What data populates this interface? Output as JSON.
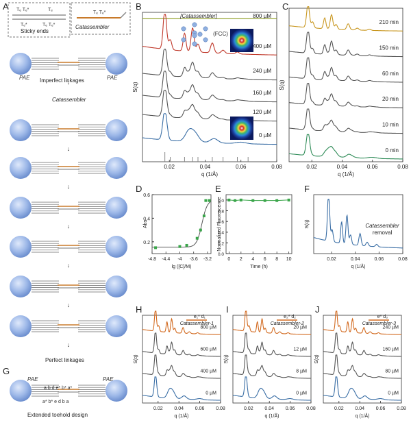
{
  "panels": [
    {
      "id": "A",
      "label": "A"
    },
    {
      "id": "B",
      "label": "B"
    },
    {
      "id": "C",
      "label": "C"
    },
    {
      "id": "D",
      "label": "D"
    },
    {
      "id": "E",
      "label": "E"
    },
    {
      "id": "F",
      "label": "F"
    },
    {
      "id": "G",
      "label": "G"
    },
    {
      "id": "H",
      "label": "H"
    },
    {
      "id": "I",
      "label": "I"
    },
    {
      "id": "J",
      "label": "J"
    }
  ],
  "schematic": {
    "sticky_ends_label": "Sticky ends",
    "catassembler_label": "Catassembler",
    "imperfect_linkages_label": "Imperfect linkages",
    "catassembler_step_label": "Catassembler",
    "perfect_linkages_label": "Perfect linkages",
    "pae_left": "PAE",
    "pae_right": "PAE",
    "extended_toehold_label": "Extended toehold design",
    "seq_top": "a  b     d  e* b*  a*",
    "seq_bottom": "a* b* e  d     b  a",
    "tt_labels": [
      "Tₑ Tₑ*",
      "Tₑ",
      "Tₑ*",
      "Tₑ Tₑ*",
      "Tₑ Tₑ*"
    ]
  },
  "chart_data": [
    {
      "id": "B",
      "type": "line",
      "xlabel": "q (1/Å)",
      "ylabel": "S(q)",
      "xlim": [
        0.005,
        0.08
      ],
      "xticks": [
        0.02,
        0.04,
        0.06,
        0.08
      ],
      "header_label": "[Catassembler]",
      "inset_label": "(FCC)",
      "series": [
        {
          "name": "800 µM",
          "color": "#8a9a1a"
        },
        {
          "name": "400 µM",
          "color": "#c0392b"
        },
        {
          "name": "240 µM",
          "color": "#555555"
        },
        {
          "name": "160 µM",
          "color": "#555555"
        },
        {
          "name": "120 µM",
          "color": "#555555"
        },
        {
          "name": "0 µM",
          "color": "#3a6ea5"
        }
      ]
    },
    {
      "id": "C",
      "type": "line",
      "xlabel": "q (1/Å)",
      "ylabel": "S(q)",
      "xlim": [
        0.005,
        0.08
      ],
      "xticks": [
        0.02,
        0.04,
        0.06,
        0.08
      ],
      "series": [
        {
          "name": "210 min",
          "color": "#c8961e"
        },
        {
          "name": "150 min",
          "color": "#555555"
        },
        {
          "name": "60 min",
          "color": "#555555"
        },
        {
          "name": "20 min",
          "color": "#555555"
        },
        {
          "name": "10 min",
          "color": "#555555"
        },
        {
          "name": "0 min",
          "color": "#2e8b57"
        }
      ]
    },
    {
      "id": "D",
      "type": "scatter",
      "xlabel": "lg ([C]/M)",
      "ylabel": "Abs",
      "xlim": [
        -4.8,
        -3.1
      ],
      "ylim": [
        0.1,
        0.6
      ],
      "xticks": [
        -4.8,
        -4.4,
        -4.0,
        -3.6,
        -3.2
      ],
      "yticks": [
        0.2,
        0.4,
        0.6
      ],
      "x": [
        -4.7,
        -4.0,
        -3.8,
        -3.5,
        -3.4,
        -3.3,
        -3.25,
        -3.15
      ],
      "y": [
        0.15,
        0.16,
        0.17,
        0.23,
        0.3,
        0.42,
        0.55,
        0.55
      ]
    },
    {
      "id": "E",
      "type": "scatter",
      "xlabel": "Time (h)",
      "ylabel": "Normalized Fluorescence",
      "xlim": [
        -0.5,
        10.5
      ],
      "ylim": [
        0.0,
        1.1
      ],
      "xticks": [
        0,
        2,
        4,
        6,
        8,
        10
      ],
      "yticks": [
        0.0,
        0.2,
        0.4,
        0.6,
        0.8,
        1.0
      ],
      "x": [
        0,
        1,
        2,
        4,
        6,
        8,
        10
      ],
      "y": [
        1.0,
        0.99,
        1.0,
        0.99,
        0.99,
        0.99,
        1.0
      ]
    },
    {
      "id": "F",
      "type": "line",
      "xlabel": "q (1/Å)",
      "ylabel": "S(q)",
      "xlim": [
        0.005,
        0.08
      ],
      "xticks": [
        0.02,
        0.04,
        0.06,
        0.08
      ],
      "annotation": "Catassembler removal",
      "annotation_lines": [
        "Catassembler",
        "removal"
      ]
    },
    {
      "id": "H",
      "type": "line",
      "xlabel": "q (1/Å)",
      "ylabel": "S(q)",
      "xlim": [
        0.005,
        0.08
      ],
      "xticks": [
        0.02,
        0.04,
        0.06,
        0.08
      ],
      "title": "Catassembler-1",
      "strand": "e₁* d₁",
      "series": [
        {
          "name": "800 µM",
          "color": "#d2691e"
        },
        {
          "name": "600 µM",
          "color": "#555555"
        },
        {
          "name": "400 µM",
          "color": "#555555"
        },
        {
          "name": "0 µM",
          "color": "#3a6ea5"
        }
      ]
    },
    {
      "id": "I",
      "type": "line",
      "xlabel": "q (1/Å)",
      "ylabel": "S(q)",
      "xlim": [
        0.005,
        0.08
      ],
      "xticks": [
        0.02,
        0.04,
        0.06,
        0.08
      ],
      "title": "Catassembler-2",
      "strand": "e₂* d₂",
      "series": [
        {
          "name": "20 µM",
          "color": "#d2691e"
        },
        {
          "name": "12 µM",
          "color": "#555555"
        },
        {
          "name": "8 µM",
          "color": "#555555"
        },
        {
          "name": "0 µM",
          "color": "#3a6ea5"
        }
      ]
    },
    {
      "id": "J",
      "type": "line",
      "xlabel": "q (1/Å)",
      "ylabel": "S(q)",
      "xlim": [
        0.005,
        0.08
      ],
      "xticks": [
        0.02,
        0.04,
        0.06,
        0.08
      ],
      "title": "Catassembler-3",
      "strand": "e* d₃",
      "series": [
        {
          "name": "240 µM",
          "color": "#d2691e"
        },
        {
          "name": "160 µM",
          "color": "#555555"
        },
        {
          "name": "80 µM",
          "color": "#555555"
        },
        {
          "name": "0 µM",
          "color": "#3a6ea5"
        }
      ]
    }
  ]
}
